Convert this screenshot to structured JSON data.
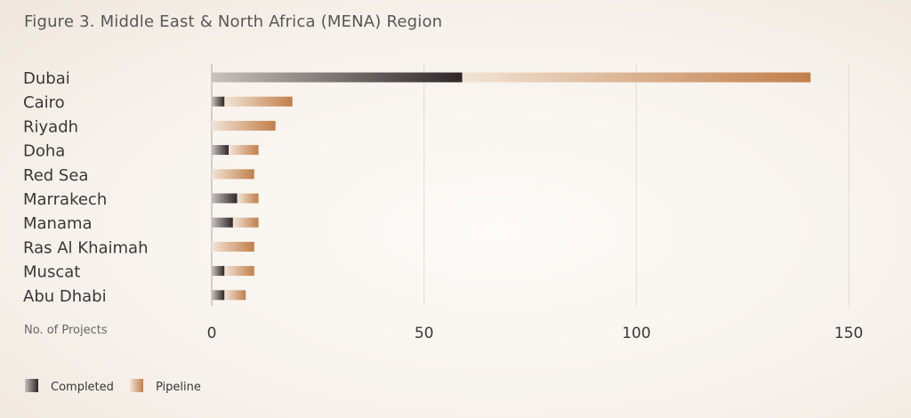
{
  "figure": {
    "title": "Figure 3. Middle East & North Africa (MENA) Region"
  },
  "chart_data": {
    "type": "bar",
    "orientation": "horizontal",
    "stacked": true,
    "categories": [
      "Dubai",
      "Cairo",
      "Riyadh",
      "Doha",
      "Red Sea",
      "Marrakech",
      "Manama",
      "Ras Al Khaimah",
      "Muscat",
      "Abu Dhabi"
    ],
    "series": [
      {
        "name": "Completed",
        "values": [
          59,
          3,
          0,
          4,
          0,
          6,
          5,
          0,
          3,
          3
        ],
        "color": "#2e2628"
      },
      {
        "name": "Pipeline",
        "values": [
          82,
          16,
          15,
          7,
          10,
          5,
          6,
          10,
          7,
          5
        ],
        "color": "#c98a55"
      }
    ],
    "xlabel": "No. of Projects",
    "xlim": [
      0,
      150
    ],
    "xticks": [
      "0",
      "50",
      "100",
      "150"
    ],
    "grid": true,
    "legend": "bottom-left"
  }
}
